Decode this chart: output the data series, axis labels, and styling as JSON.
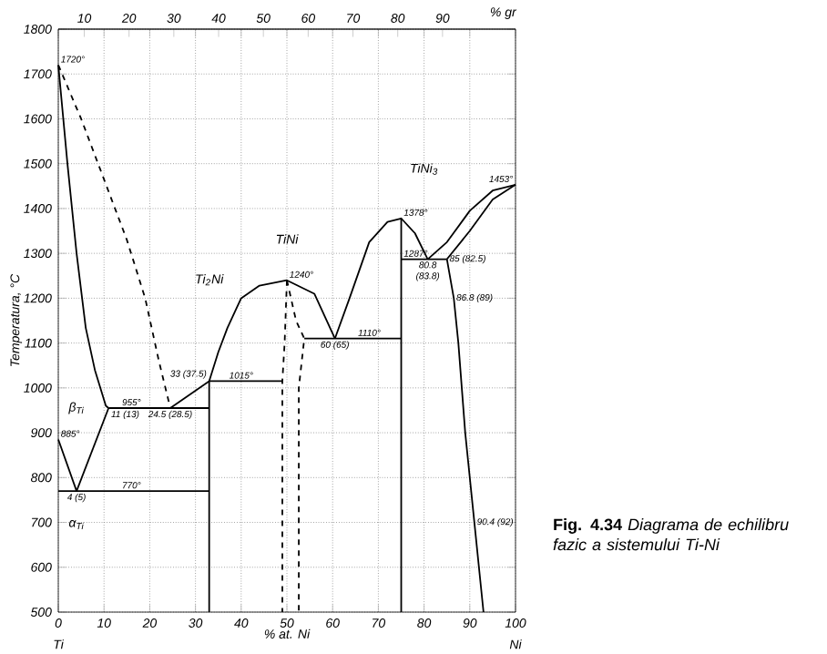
{
  "chart_data": {
    "type": "line",
    "title": "**Fig. 4.34** *Diagrama de echilibru fazic a sistemului Ti-Ni*",
    "xlabel": "% at. Ni",
    "ylabel": "Temperatura, °C",
    "xlim": [
      0,
      100
    ],
    "ylim": [
      500,
      1800
    ],
    "xticks": [
      0,
      10,
      20,
      30,
      40,
      50,
      60,
      70,
      80,
      90,
      100
    ],
    "yticks": [
      500,
      600,
      700,
      800,
      900,
      1000,
      1100,
      1200,
      1300,
      1400,
      1500,
      1600,
      1700,
      1800
    ],
    "x2lim": [
      4.2,
      106.3
    ],
    "x2ticks": [
      10,
      20,
      30,
      40,
      50,
      60,
      70,
      80,
      90
    ],
    "x2label": "% gr",
    "grid": true,
    "marker": "none",
    "series": [
      {
        "x": [
          0,
          5,
          10,
          15,
          19,
          22,
          24.5
        ],
        "values": [
          1720,
          1600,
          1465,
          1330,
          1200,
          1060,
          955
        ],
        "color": "#000000",
        "line_style": "dashed"
      },
      {
        "x": [
          0,
          2,
          4,
          6,
          8,
          10.4,
          11
        ],
        "values": [
          1720,
          1500,
          1300,
          1134,
          1040,
          960,
          955
        ],
        "color": "#000000",
        "line_style": "solid"
      },
      {
        "x": [
          11,
          33
        ],
        "values": [
          955,
          955
        ],
        "color": "#000000",
        "line_style": "solid"
      },
      {
        "x": [
          24.5,
          33,
          35,
          37,
          40,
          44,
          50,
          56,
          60.5
        ],
        "values": [
          955,
          1015,
          1080,
          1134,
          1200,
          1228,
          1240,
          1210,
          1110
        ],
        "color": "#000000",
        "line_style": "solid"
      },
      {
        "x": [
          60.5,
          63.7,
          68,
          72,
          75,
          78,
          80.8
        ],
        "values": [
          1110,
          1200,
          1325,
          1370,
          1378,
          1345,
          1287
        ],
        "color": "#000000",
        "line_style": "solid"
      },
      {
        "x": [
          80.8,
          85,
          90,
          95,
          100
        ],
        "values": [
          1287,
          1325,
          1395,
          1440,
          1453
        ],
        "color": "#000000",
        "line_style": "solid"
      },
      {
        "x": [
          85,
          90,
          95,
          100
        ],
        "values": [
          1287,
          1350,
          1420,
          1453
        ],
        "color": "#000000",
        "line_style": "solid"
      },
      {
        "x": [
          75,
          85
        ],
        "values": [
          1287,
          1287
        ],
        "color": "#000000",
        "line_style": "solid"
      },
      {
        "x": [
          85,
          86.5,
          87.5,
          89,
          91,
          93
        ],
        "values": [
          1287,
          1200,
          1100,
          900,
          700,
          500
        ],
        "color": "#000000",
        "line_style": "solid"
      },
      {
        "x": [
          75,
          75
        ],
        "values": [
          500,
          1378
        ],
        "color": "#000000",
        "line_style": "solid"
      },
      {
        "x": [
          53.8,
          75
        ],
        "values": [
          1110,
          1110
        ],
        "color": "#000000",
        "line_style": "solid"
      },
      {
        "x": [
          50,
          49.5,
          49,
          49
        ],
        "values": [
          1240,
          1100,
          1015,
          500
        ],
        "color": "#000000",
        "line_style": "dashed"
      },
      {
        "x": [
          50,
          52,
          53.8,
          52.6,
          52.6
        ],
        "values": [
          1240,
          1150,
          1110,
          1000,
          500
        ],
        "color": "#000000",
        "line_style": "dashed"
      },
      {
        "x": [
          33,
          49
        ],
        "values": [
          1015,
          1015
        ],
        "color": "#000000",
        "line_style": "solid"
      },
      {
        "x": [
          33,
          33
        ],
        "values": [
          500,
          1015
        ],
        "color": "#000000",
        "line_style": "solid"
      },
      {
        "x": [
          0,
          33
        ],
        "values": [
          770,
          770
        ],
        "color": "#000000",
        "line_style": "solid"
      },
      {
        "x": [
          0,
          4
        ],
        "values": [
          885,
          770
        ],
        "color": "#000000",
        "line_style": "solid"
      },
      {
        "x": [
          11,
          4
        ],
        "values": [
          955,
          770
        ],
        "color": "#000000",
        "line_style": "solid"
      }
    ],
    "annotations": [
      {
        "text": "1720°",
        "x": 0,
        "y": 1720
      },
      {
        "text": "1453°",
        "x": 100,
        "y": 1453
      },
      {
        "text": "1378°",
        "x": 75,
        "y": 1378
      },
      {
        "text": "1240°",
        "x": 50,
        "y": 1240
      },
      {
        "text": "1287°",
        "x": 75,
        "y": 1287
      },
      {
        "text": "80.8 (83.8)",
        "x": 80.8,
        "y": 1287
      },
      {
        "text": "85 (82.5)",
        "x": 85,
        "y": 1287
      },
      {
        "text": "86.8 (89)",
        "x": 86.5,
        "y": 1200
      },
      {
        "text": "90.4 (92)",
        "x": 91,
        "y": 700
      },
      {
        "text": "1110°",
        "x": 65,
        "y": 1110
      },
      {
        "text": "60 (65)",
        "x": 60.5,
        "y": 1110
      },
      {
        "text": "1015°",
        "x": 40,
        "y": 1015
      },
      {
        "text": "33 (37.5)",
        "x": 33,
        "y": 1015
      },
      {
        "text": "955°",
        "x": 16,
        "y": 955
      },
      {
        "text": "11 (13)",
        "x": 11,
        "y": 955
      },
      {
        "text": "24.5 (28.5)",
        "x": 24.5,
        "y": 955
      },
      {
        "text": "885°",
        "x": 0,
        "y": 885
      },
      {
        "text": "4 (5)",
        "x": 4,
        "y": 770
      },
      {
        "text": "770°",
        "x": 16,
        "y": 770
      },
      "β$_{Ti}$",
      "α$_{Ti}$",
      "Ti$_{2}$Ni",
      "TiNi",
      "TiNi$_{3}$",
      "Ti",
      "Ni"
    ]
  }
}
